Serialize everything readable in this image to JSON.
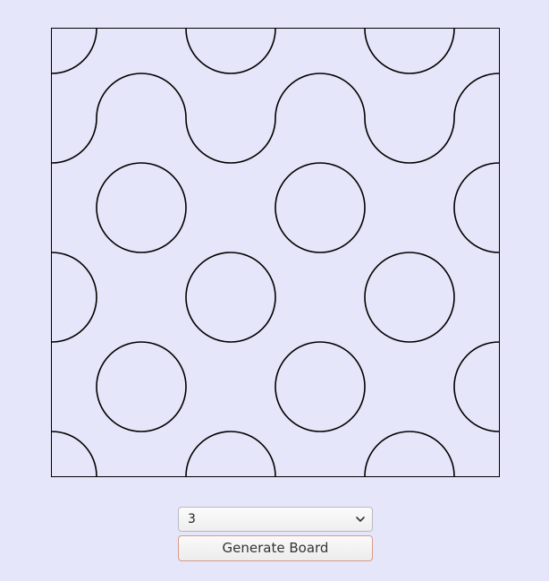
{
  "board": {
    "grid_size": 5,
    "stroke_color": "#000000",
    "background_color": "#e6e6fa",
    "tiles": [
      [
        "tl",
        "tr",
        "tl",
        "tr",
        "tl"
      ],
      [
        "rb",
        "lb",
        "rb",
        "lb",
        "rb"
      ],
      [
        "tr",
        "tl",
        "tr",
        "tl",
        "tr"
      ],
      [
        "rb",
        "lb",
        "rb",
        "lb",
        "rb"
      ],
      [
        "tr",
        "tl",
        "tr",
        "tl",
        "tr"
      ]
    ]
  },
  "controls": {
    "size_select": {
      "selected": "3",
      "arrow_icon": "chevron-down-icon"
    },
    "generate_button_label": "Generate Board"
  }
}
